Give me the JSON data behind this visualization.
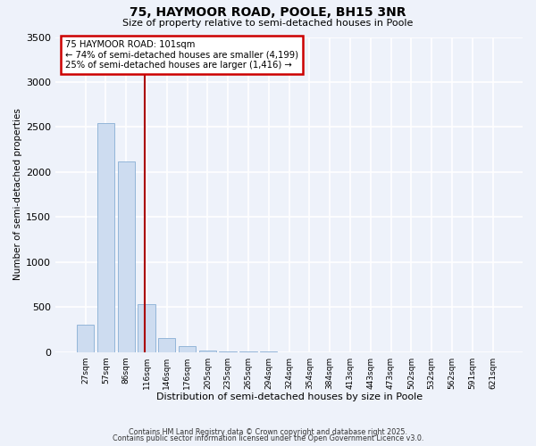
{
  "title": "75, HAYMOOR ROAD, POOLE, BH15 3NR",
  "subtitle": "Size of property relative to semi-detached houses in Poole",
  "xlabel": "Distribution of semi-detached houses by size in Poole",
  "ylabel": "Number of semi-detached properties",
  "bar_labels": [
    "27sqm",
    "57sqm",
    "86sqm",
    "116sqm",
    "146sqm",
    "176sqm",
    "205sqm",
    "235sqm",
    "265sqm",
    "294sqm",
    "324sqm",
    "354sqm",
    "384sqm",
    "413sqm",
    "443sqm",
    "473sqm",
    "502sqm",
    "532sqm",
    "562sqm",
    "591sqm",
    "621sqm"
  ],
  "bar_values": [
    300,
    2540,
    2120,
    530,
    155,
    65,
    20,
    5,
    2,
    1,
    0,
    0,
    0,
    0,
    0,
    0,
    0,
    0,
    0,
    0,
    0
  ],
  "bar_color": "#cddcf0",
  "bar_edgecolor": "#88aed4",
  "ylim": [
    0,
    3500
  ],
  "yticks": [
    0,
    500,
    1000,
    1500,
    2000,
    2500,
    3000,
    3500
  ],
  "vline_x": 2.93,
  "vline_color": "#aa0000",
  "annotation_line1": "75 HAYMOOR ROAD: 101sqm",
  "annotation_line2": "← 74% of semi-detached houses are smaller (4,199)",
  "annotation_line3": "25% of semi-detached houses are larger (1,416) →",
  "annotation_box_edgecolor": "#cc0000",
  "background_color": "#eef2fa",
  "grid_color": "#ffffff",
  "title_fontsize": 10,
  "subtitle_fontsize": 8,
  "footer1": "Contains HM Land Registry data © Crown copyright and database right 2025.",
  "footer2": "Contains public sector information licensed under the Open Government Licence v3.0."
}
